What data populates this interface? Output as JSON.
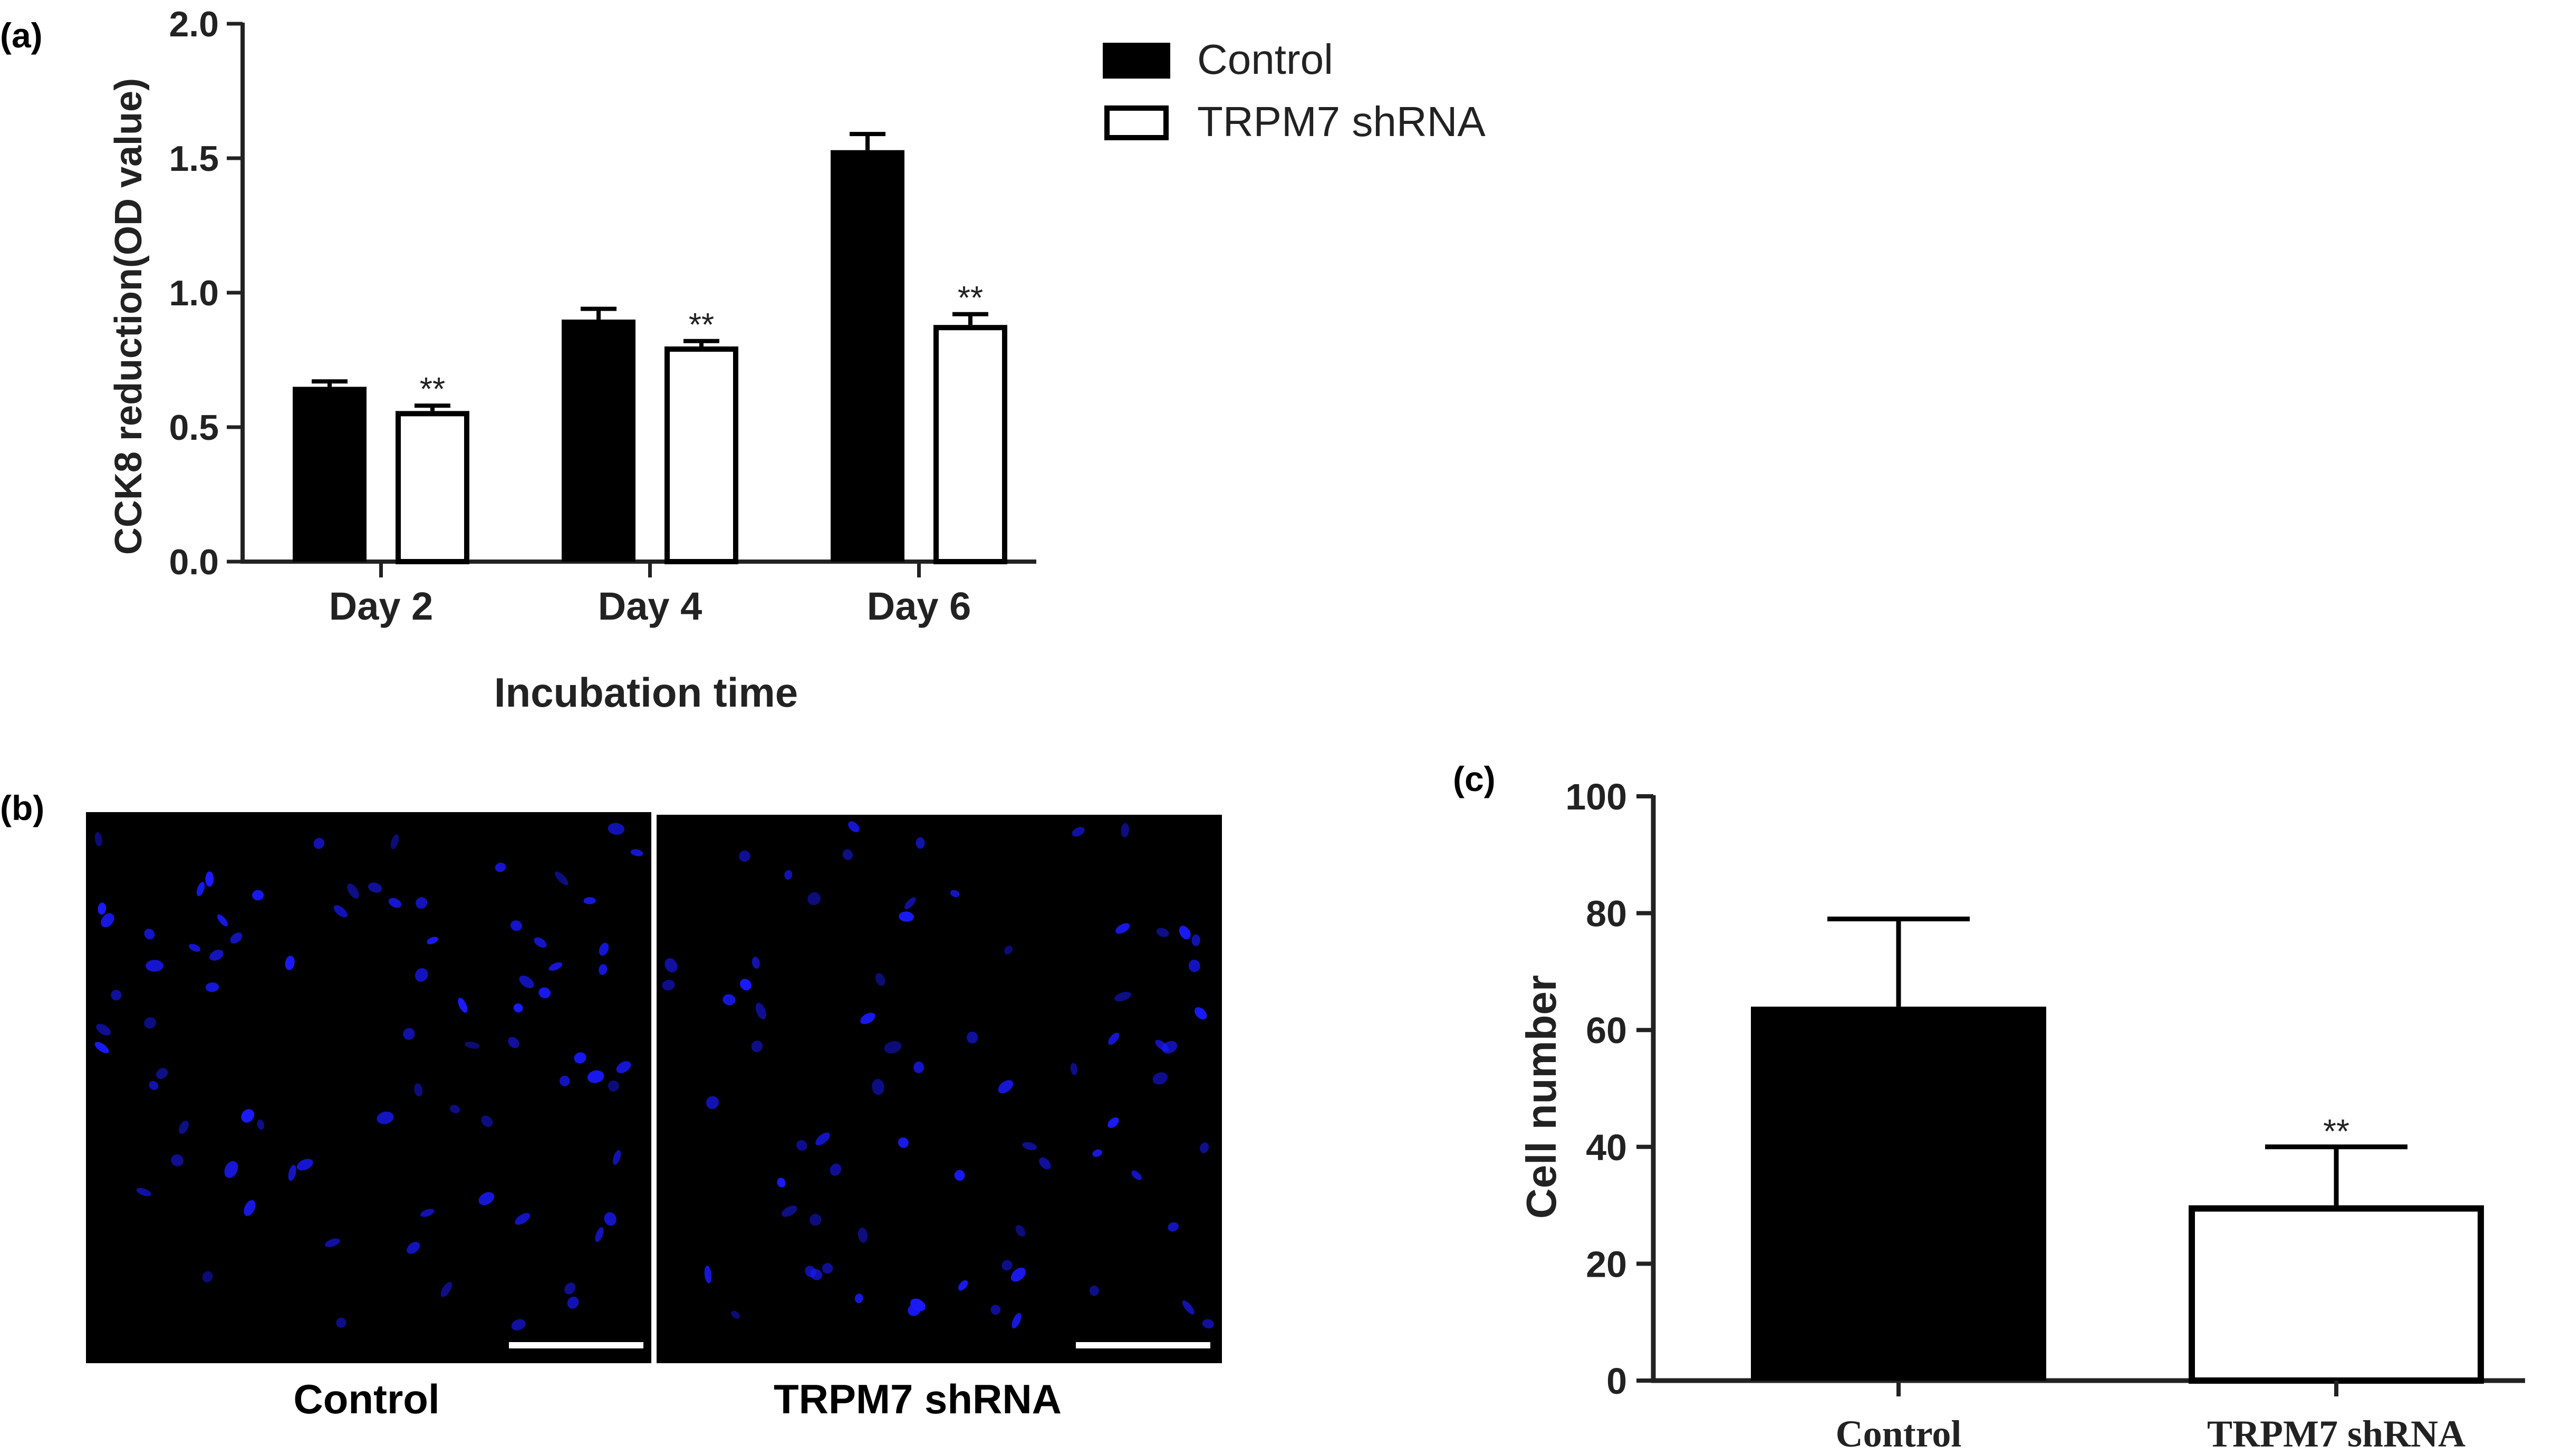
{
  "panels": {
    "a": "(a)",
    "b": "(b)",
    "c": "(c)"
  },
  "colors": {
    "control": "#000000",
    "shrna": "#ffffff",
    "nuclei": "#1a1aff",
    "micrograph_bg": "#000000"
  },
  "micrographs": {
    "labels": [
      "Control",
      "TRPM7 shRNA"
    ]
  },
  "chart_data": [
    {
      "id": "a",
      "type": "bar",
      "title": "",
      "xlabel": "Incubation time",
      "ylabel": "CCK8 reduction(OD value)",
      "categories": [
        "Day 2",
        "Day 4",
        "Day 6"
      ],
      "ylim": [
        0,
        2.0
      ],
      "yticks": [
        "0.0",
        "0.5",
        "1.0",
        "1.5",
        "2.0"
      ],
      "grid": false,
      "legend": "top-right",
      "series": [
        {
          "name": "Control",
          "values": [
            0.65,
            0.9,
            1.53
          ],
          "errors": [
            0.02,
            0.04,
            0.06
          ]
        },
        {
          "name": "TRPM7 shRNA",
          "values": [
            0.56,
            0.8,
            0.88
          ],
          "errors": [
            0.02,
            0.02,
            0.04
          ],
          "annotations": [
            "**",
            "**",
            "**"
          ]
        }
      ]
    },
    {
      "id": "c",
      "type": "bar",
      "title": "",
      "xlabel": "",
      "ylabel": "Cell number",
      "categories": [
        "Control",
        "TRPM7 shRNA"
      ],
      "ylim": [
        0,
        100
      ],
      "yticks": [
        "0",
        "20",
        "40",
        "60",
        "80",
        "100"
      ],
      "grid": false,
      "values": [
        64,
        30
      ],
      "errors": [
        15,
        10
      ],
      "annotations": [
        "",
        "**"
      ]
    }
  ]
}
